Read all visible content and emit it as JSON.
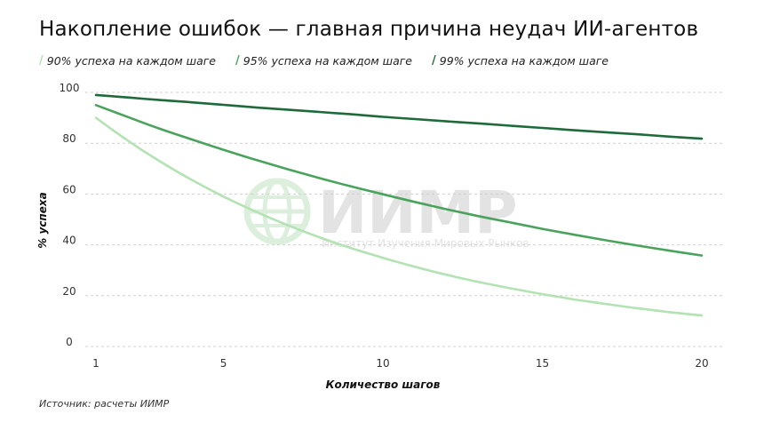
{
  "title": "Накопление ошибок — главная причина неудач ИИ-агентов",
  "source": "Источник: расчеты ИИМР",
  "watermark": {
    "logo_text": "ИИМР",
    "subtitle": "Институт Изучения Мировых Рынков",
    "icon": "globe-icon"
  },
  "colors": {
    "series_90": "#b3e2b3",
    "series_95": "#4aa35c",
    "series_99": "#1f6a3a",
    "grid": "#d0d0d0",
    "watermark": "#e3e3e3",
    "watermark_green": "#dcefdc"
  },
  "chart_data": {
    "type": "line",
    "title": "Накопление ошибок — главная причина неудач ИИ-агентов",
    "xlabel": "Количество шагов",
    "ylabel": "% успеха",
    "xlim": [
      1,
      20
    ],
    "ylim": [
      0,
      100
    ],
    "x_ticks": [
      1,
      5,
      10,
      15,
      20
    ],
    "y_ticks": [
      0,
      20,
      40,
      60,
      80,
      100
    ],
    "grid": "horizontal dashed",
    "legend_position": "top-left",
    "x": [
      1,
      2,
      3,
      4,
      5,
      6,
      7,
      8,
      9,
      10,
      11,
      12,
      13,
      14,
      15,
      16,
      17,
      18,
      19,
      20
    ],
    "series": [
      {
        "name": "90% успеха на каждом шаге",
        "color": "#b3e2b3",
        "values": [
          90.0,
          81.0,
          72.9,
          65.6,
          59.0,
          53.1,
          47.8,
          43.0,
          38.7,
          34.9,
          31.4,
          28.2,
          25.4,
          22.9,
          20.6,
          18.5,
          16.7,
          15.0,
          13.5,
          12.2
        ]
      },
      {
        "name": "95% успеха на каждом шаге",
        "color": "#4aa35c",
        "values": [
          95.0,
          90.3,
          85.7,
          81.5,
          77.4,
          73.5,
          69.8,
          66.3,
          63.0,
          59.9,
          56.9,
          54.0,
          51.3,
          48.8,
          46.3,
          44.0,
          41.8,
          39.7,
          37.7,
          35.8
        ]
      },
      {
        "name": "99% успеха на каждом шаге",
        "color": "#1f6a3a",
        "values": [
          99.0,
          98.0,
          97.0,
          96.1,
          95.1,
          94.1,
          93.2,
          92.3,
          91.4,
          90.4,
          89.5,
          88.6,
          87.8,
          86.9,
          86.0,
          85.1,
          84.3,
          83.5,
          82.6,
          81.8
        ]
      }
    ]
  }
}
